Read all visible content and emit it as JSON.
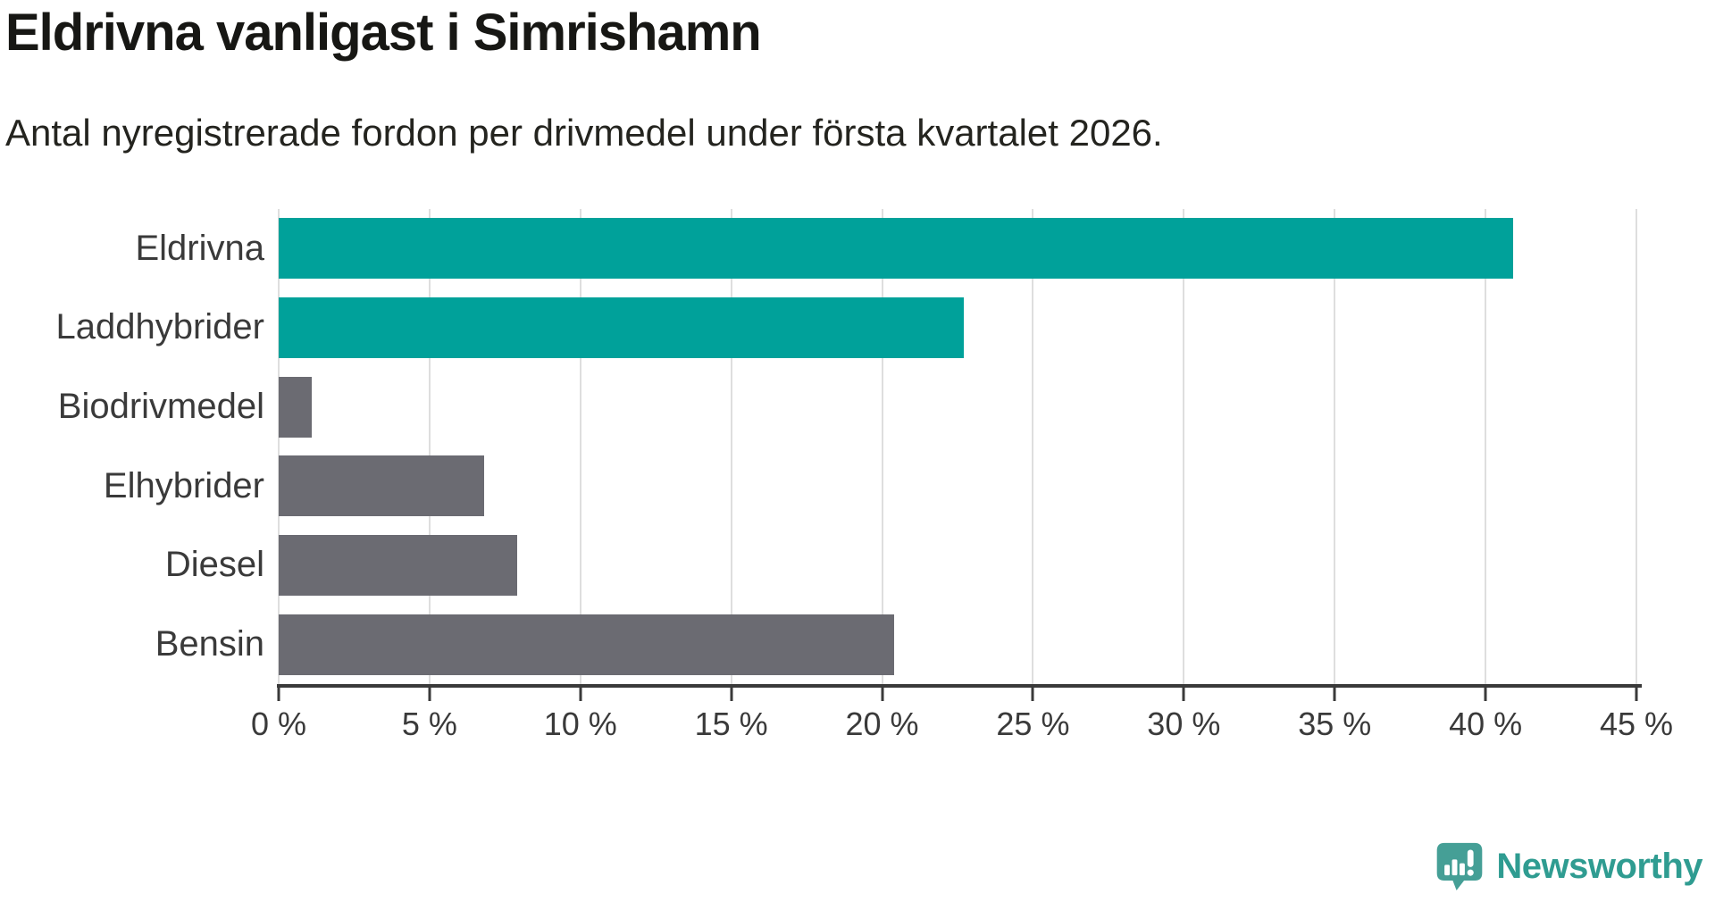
{
  "header": {
    "title": "Eldrivna vanligast i Simrishamn",
    "subtitle": "Antal nyregistrerade fordon per drivmedel under första kvartalet 2026."
  },
  "chart_data": {
    "type": "bar",
    "orientation": "horizontal",
    "title": "Eldrivna vanligast i Simrishamn",
    "subtitle": "Antal nyregistrerade fordon per drivmedel under första kvartalet 2026.",
    "categories": [
      "Eldrivna",
      "Laddhybrider",
      "Biodrivmedel",
      "Elhybrider",
      "Diesel",
      "Bensin"
    ],
    "values": [
      40.9,
      22.7,
      1.1,
      6.8,
      7.9,
      20.4
    ],
    "unit": "%",
    "bar_colors": [
      "#00a19a",
      "#00a19a",
      "#6b6b72",
      "#6b6b72",
      "#6b6b72",
      "#6b6b72"
    ],
    "highlight_color": "#00a19a",
    "default_color": "#6b6b72",
    "xlim": [
      0,
      45
    ],
    "x_ticks": [
      0,
      5,
      10,
      15,
      20,
      25,
      30,
      35,
      40,
      45
    ],
    "x_tick_labels": [
      "0 %",
      "5 %",
      "10 %",
      "15 %",
      "20 %",
      "25 %",
      "30 %",
      "35 %",
      "40 %",
      "45 %"
    ],
    "xlabel": "",
    "ylabel": "",
    "grid": "vertical-only",
    "legend": "none",
    "gridline_color": "#dedede",
    "axis_color": "#3a3a3a"
  },
  "branding": {
    "logo_text": "Newsworthy",
    "logo_icon": "newsworthy-speech-bubble-bar-chart-icon",
    "icon_color": "#459f96",
    "text_color": "#2f9c91"
  }
}
